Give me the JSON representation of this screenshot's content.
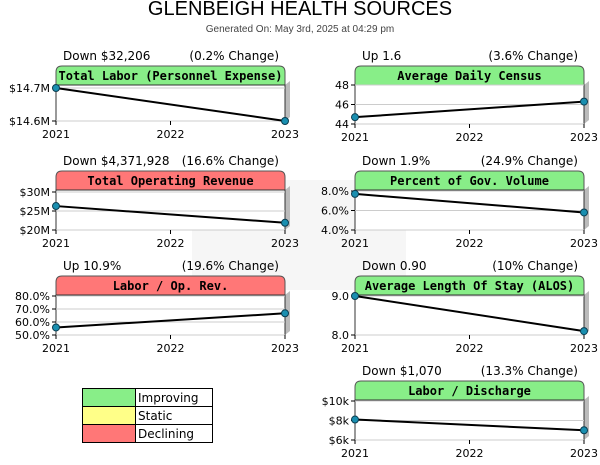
{
  "title": "GLENBEIGH HEALTH SOURCES",
  "subtitle": "Generated On: May 3rd, 2025 at 04:29 pm",
  "colors": {
    "improving": "#88ee88",
    "static": "#ffff88",
    "declining": "#ff7777",
    "line": "#000000",
    "marker": "#1a8fb0"
  },
  "legend": [
    {
      "label": "Improving",
      "status": "improving"
    },
    {
      "label": "Static",
      "status": "static"
    },
    {
      "label": "Declining",
      "status": "declining"
    }
  ],
  "chart_data": [
    {
      "type": "line",
      "title": "Total Labor (Personnel Expense)",
      "status": "improving",
      "change_text": "Down $32,206",
      "pct_text": "(0.2% Change)",
      "x": [
        2021,
        2023
      ],
      "y": [
        14.7,
        14.6
      ],
      "ylim": [
        14.6,
        14.7
      ],
      "yticks": [
        14.6,
        14.7
      ],
      "yticklabels": [
        "$14.6M",
        "$14.7M"
      ],
      "xticklabels": [
        "2021",
        "2022",
        "2023"
      ]
    },
    {
      "type": "line",
      "title": "Average Daily Census",
      "status": "improving",
      "change_text": "Up 1.6",
      "pct_text": "(3.6% Change)",
      "x": [
        2021,
        2023
      ],
      "y": [
        44.7,
        46.3
      ],
      "ylim": [
        44,
        48
      ],
      "yticks": [
        44,
        46,
        48
      ],
      "yticklabels": [
        "44",
        "46",
        "48"
      ],
      "xticklabels": [
        "2021",
        "2022",
        "2023"
      ]
    },
    {
      "type": "line",
      "title": "Total Operating Revenue",
      "status": "declining",
      "change_text": "Down $4,371,928",
      "pct_text": "(16.6% Change)",
      "x": [
        2021,
        2023
      ],
      "y": [
        26.3,
        21.9
      ],
      "ylim": [
        20,
        30
      ],
      "yticks": [
        20,
        25,
        30
      ],
      "yticklabels": [
        "$20M",
        "$25M",
        "$30M"
      ],
      "xticklabels": [
        "2021",
        "2022",
        "2023"
      ]
    },
    {
      "type": "line",
      "title": "Percent of Gov. Volume",
      "status": "improving",
      "change_text": "Down 1.9%",
      "pct_text": "(24.9% Change)",
      "x": [
        2021,
        2023
      ],
      "y": [
        7.7,
        5.8
      ],
      "ylim": [
        4,
        8
      ],
      "yticks": [
        4,
        6,
        8
      ],
      "yticklabels": [
        "4.0%",
        "6.0%",
        "8.0%"
      ],
      "xticklabels": [
        "2021",
        "2022",
        "2023"
      ]
    },
    {
      "type": "line",
      "title": "Labor / Op. Rev.",
      "status": "declining",
      "change_text": "Up 10.9%",
      "pct_text": "(19.6% Change)",
      "x": [
        2021,
        2023
      ],
      "y": [
        55.8,
        66.7
      ],
      "ylim": [
        50,
        80
      ],
      "yticks": [
        50,
        60,
        70,
        80
      ],
      "yticklabels": [
        "50.0%",
        "60.0%",
        "70.0%",
        "80.0%"
      ],
      "xticklabels": [
        "2021",
        "2022",
        "2023"
      ]
    },
    {
      "type": "line",
      "title": "Average Length Of Stay (ALOS)",
      "status": "improving",
      "change_text": "Down 0.90",
      "pct_text": "(10% Change)",
      "x": [
        2021,
        2023
      ],
      "y": [
        9.0,
        8.1
      ],
      "ylim": [
        8,
        9
      ],
      "yticks": [
        8,
        9
      ],
      "yticklabels": [
        "8.0",
        "9.0"
      ],
      "xticklabels": [
        "2021",
        "2022",
        "2023"
      ]
    },
    {
      "type": "line",
      "title": "Labor / Discharge",
      "status": "improving",
      "change_text": "Down $1,070",
      "pct_text": "(13.3% Change)",
      "x": [
        2021,
        2023
      ],
      "y": [
        8.1,
        7.0
      ],
      "ylim": [
        6,
        10
      ],
      "yticks": [
        6,
        8,
        10
      ],
      "yticklabels": [
        "$6k",
        "$8k",
        "$10k"
      ],
      "xticklabels": [
        "2021",
        "2022",
        "2023"
      ]
    }
  ]
}
